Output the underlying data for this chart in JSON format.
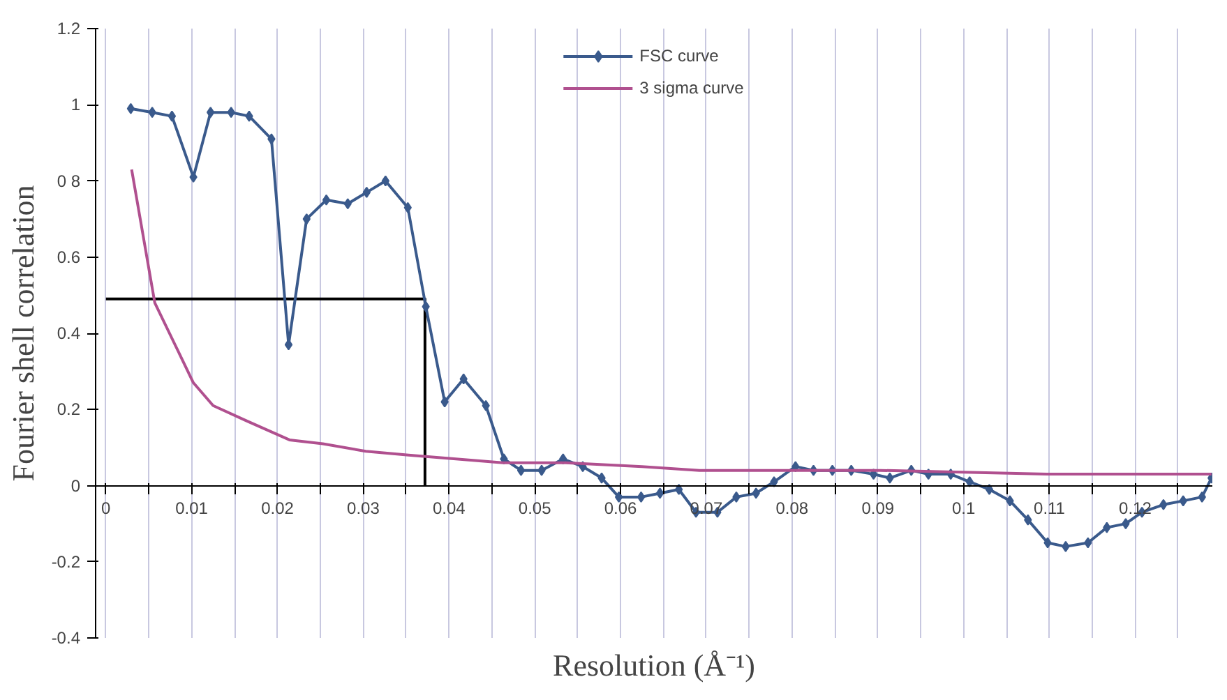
{
  "chart_data": {
    "type": "line",
    "xlabel": "Resolution (Å⁻¹)",
    "ylabel": "Fourier shell correlation",
    "xlim": [
      -0.0012,
      0.129
    ],
    "ylim": [
      -0.4,
      1.2
    ],
    "xticks": [
      0,
      {
        "value": 0.005,
        "label": null
      },
      0.01,
      {
        "value": 0.015,
        "label": null
      },
      0.02,
      {
        "value": 0.025,
        "label": null
      },
      0.03,
      {
        "value": 0.035,
        "label": null
      },
      0.04,
      {
        "value": 0.045,
        "label": null
      },
      0.05,
      {
        "value": 0.055,
        "label": null
      },
      0.06,
      {
        "value": 0.065,
        "label": null
      },
      0.07,
      {
        "value": 0.075,
        "label": null
      },
      0.08,
      {
        "value": 0.085,
        "label": null
      },
      0.09,
      {
        "value": 0.095,
        "label": null
      },
      0.1,
      {
        "value": 0.105,
        "label": null
      },
      0.11,
      {
        "value": 0.115,
        "label": null
      },
      0.12,
      {
        "value": 0.125,
        "label": null
      }
    ],
    "yticks": [
      -0.4,
      -0.2,
      0,
      0.2,
      0.4,
      0.6,
      {
        "value": 0.8,
        "label": "0 8"
      },
      1,
      1.2
    ],
    "grid": "x",
    "legend": "top",
    "series": [
      {
        "color": "#000000",
        "marker": "none",
        "x": [
          0,
          0.0372,
          0.0372
        ],
        "values": [
          0.49,
          0.49,
          0
        ]
      },
      {
        "name": "FSC curve",
        "color": "#3a5a8c",
        "marker": "diamond",
        "x": [
          0.0029,
          0.0054,
          0.0077,
          0.0102,
          0.0122,
          0.0146,
          0.0167,
          0.0193,
          0.0213,
          0.0234,
          0.0257,
          0.0282,
          0.0304,
          0.0326,
          0.0352,
          0.0373,
          0.0395,
          0.0417,
          0.0443,
          0.0464,
          0.0484,
          0.0508,
          0.0533,
          0.0556,
          0.0578,
          0.0598,
          0.0624,
          0.0646,
          0.0668,
          0.0688,
          0.0713,
          0.0735,
          0.0758,
          0.0779,
          0.0804,
          0.0825,
          0.0847,
          0.0869,
          0.0895,
          0.0914,
          0.0939,
          0.0959,
          0.0985,
          0.1007,
          0.103,
          0.1054,
          0.1075,
          0.1098,
          0.1119,
          0.1145,
          0.1167,
          0.1189,
          0.1208,
          0.1233,
          0.1256,
          0.1278,
          0.1289
        ],
        "values": [
          0.99,
          0.98,
          0.97,
          0.81,
          0.98,
          0.98,
          0.97,
          0.91,
          0.37,
          0.7,
          0.75,
          0.74,
          0.77,
          0.8,
          0.73,
          0.47,
          0.22,
          0.28,
          0.21,
          0.07,
          0.04,
          0.04,
          0.07,
          0.05,
          0.02,
          -0.03,
          -0.03,
          -0.02,
          -0.01,
          -0.07,
          -0.07,
          -0.03,
          -0.02,
          0.01,
          0.05,
          0.04,
          0.04,
          0.04,
          0.03,
          0.02,
          0.04,
          0.03,
          0.03,
          0.01,
          -0.01,
          -0.04,
          -0.09,
          -0.15,
          -0.16,
          -0.15,
          -0.11,
          -0.1,
          -0.07,
          -0.05,
          -0.04,
          -0.03,
          0.02
        ]
      },
      {
        "name": "3 sigma curve",
        "color": "#b0508f",
        "marker": "none",
        "x": [
          0.003,
          0.0057,
          0.0102,
          0.0125,
          0.0164,
          0.0214,
          0.0253,
          0.0303,
          0.0353,
          0.0463,
          0.0536,
          0.0625,
          0.0692,
          0.0903,
          0.1097,
          0.1253,
          0.1289
        ],
        "values": [
          0.83,
          0.48,
          0.27,
          0.21,
          0.17,
          0.12,
          0.11,
          0.09,
          0.08,
          0.06,
          0.06,
          0.05,
          0.04,
          0.04,
          0.03,
          0.03,
          0.03
        ]
      }
    ]
  }
}
